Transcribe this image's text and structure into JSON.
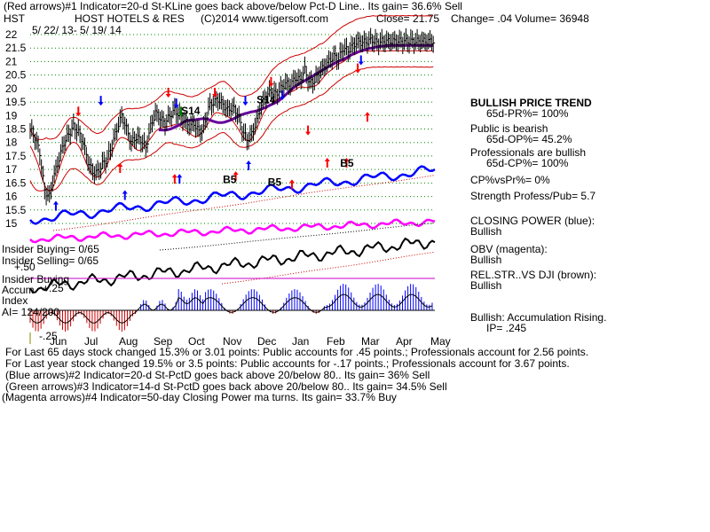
{
  "header": {
    "line1": "(Red arrows)#1 Indicator=20-d St-KLine goes back above/below Pct-D Line.. Its gain= 36.6% Sell",
    "symbol": "HST",
    "company": "HOST HOTELS & RES",
    "copyright": "(C)2014 www.tigersoft.com",
    "close": "Close=  21.75",
    "change": "Change= .04",
    "volume": "Volume= 36948",
    "date_range": "5/ 22/ 13- 5/ 19/ 14"
  },
  "chart_data": {
    "type": "line",
    "y_ticks": [
      "22",
      "21.5",
      "21",
      "20.5",
      "20",
      "19.5",
      "19",
      "18.5",
      "18",
      "17.5",
      "17",
      "16.5",
      "16",
      "15.5",
      "15"
    ],
    "ylim": [
      15,
      22
    ],
    "months": [
      "Jun",
      "Jul",
      "Aug",
      "Sep",
      "Oct",
      "Nov",
      "Dec",
      "Jan",
      "Feb",
      "Mar",
      "Apr",
      "May"
    ],
    "price_series": {
      "name": "",
      "x": [
        0,
        3,
        6,
        9,
        12,
        15,
        18,
        21,
        24,
        27,
        30,
        33,
        36,
        39,
        42,
        45,
        48,
        51,
        54,
        57,
        60,
        63,
        66,
        69,
        72,
        75,
        78,
        81,
        84,
        87,
        90,
        93,
        96,
        99,
        102,
        105,
        108,
        111,
        114,
        117,
        120,
        123,
        126,
        129,
        132,
        135,
        138,
        141,
        144,
        147,
        150,
        153,
        156,
        159,
        162,
        165,
        168,
        171,
        174,
        177,
        180,
        183,
        186,
        189,
        192,
        195,
        198,
        201,
        204,
        207,
        210,
        213,
        216,
        219,
        222,
        225,
        228,
        231,
        234,
        237,
        240,
        243,
        246,
        249,
        252
      ],
      "y": [
        18.5,
        18.2,
        17.6,
        16.2,
        16.0,
        16.8,
        17.4,
        18.0,
        18.3,
        18.6,
        18.4,
        18.0,
        17.3,
        16.9,
        16.9,
        17.2,
        17.4,
        17.9,
        18.5,
        19.0,
        18.5,
        18.0,
        18.2,
        18.1,
        17.8,
        18.6,
        19.1,
        18.9,
        18.7,
        19.0,
        19.2,
        19.0,
        18.8,
        18.6,
        18.7,
        18.4,
        18.5,
        19.3,
        19.5,
        19.6,
        19.4,
        19.2,
        19.3,
        19.1,
        18.5,
        18.1,
        18.3,
        18.8,
        19.4,
        19.7,
        19.9,
        19.8,
        20.0,
        20.2,
        20.1,
        20.4,
        20.3,
        20.7,
        20.2,
        20.3,
        20.6,
        20.8,
        21.0,
        21.2,
        21.1,
        21.5,
        21.4,
        21.6,
        21.75,
        21.7,
        21.75,
        21.8,
        21.7,
        21.75,
        21.75,
        21.75,
        21.75,
        21.75,
        21.75,
        21.75,
        21.75,
        21.75,
        21.75,
        21.75,
        21.75
      ]
    },
    "arrows": [
      {
        "color": "red",
        "dir": "down",
        "x": 30,
        "y": 19.0
      },
      {
        "color": "red",
        "dir": "up",
        "x": 56,
        "y": 17.2
      },
      {
        "color": "red",
        "dir": "down",
        "x": 86,
        "y": 19.7
      },
      {
        "color": "red",
        "dir": "up",
        "x": 90,
        "y": 16.8
      },
      {
        "color": "red",
        "dir": "down",
        "x": 115,
        "y": 19.7
      },
      {
        "color": "red",
        "dir": "up",
        "x": 128,
        "y": 16.9
      },
      {
        "color": "red",
        "dir": "down",
        "x": 150,
        "y": 20.1
      },
      {
        "color": "red",
        "dir": "up",
        "x": 163,
        "y": 16.6
      },
      {
        "color": "red",
        "dir": "down",
        "x": 173,
        "y": 18.3
      },
      {
        "color": "red",
        "dir": "up",
        "x": 185,
        "y": 17.4
      },
      {
        "color": "red",
        "dir": "up",
        "x": 197,
        "y": 17.4
      },
      {
        "color": "red",
        "dir": "down",
        "x": 204,
        "y": 20.6
      },
      {
        "color": "red",
        "dir": "up",
        "x": 210,
        "y": 19.1
      },
      {
        "color": "blue",
        "dir": "down",
        "x": 44,
        "y": 19.4
      },
      {
        "color": "blue",
        "dir": "up",
        "x": 16,
        "y": 15.8
      },
      {
        "color": "blue",
        "dir": "up",
        "x": 59,
        "y": 16.2
      },
      {
        "color": "blue",
        "dir": "down",
        "x": 91,
        "y": 19.3
      },
      {
        "color": "blue",
        "dir": "up",
        "x": 93,
        "y": 16.8
      },
      {
        "color": "blue",
        "dir": "down",
        "x": 134,
        "y": 19.4
      },
      {
        "color": "blue",
        "dir": "up",
        "x": 136,
        "y": 17.3
      },
      {
        "color": "blue",
        "dir": "down",
        "x": 157,
        "y": 19.6
      },
      {
        "color": "blue",
        "dir": "down",
        "x": 206,
        "y": 20.9
      },
      {
        "color": "green",
        "dir": "down",
        "x": 94,
        "y": 19.0
      }
    ],
    "labels": [
      {
        "text": "S14",
        "x": 94,
        "y": 19.05
      },
      {
        "text": "S14",
        "x": 141,
        "y": 19.45
      },
      {
        "text": "B5",
        "x": 120,
        "y": 16.5
      },
      {
        "text": "B5",
        "x": 148,
        "y": 16.4
      },
      {
        "text": "B5",
        "x": 193,
        "y": 17.1
      }
    ]
  },
  "indicators": {
    "insider_buying": "Insider Buying= 0/65",
    "insider_selling": "Insider Selling= 0/65",
    "insider_buying_lbl": "Insider Buying",
    "accum": "Accum",
    "index": "Index",
    "ai": "AI= 124/200",
    "v_plus50": "+.50",
    "v_plus25": "+.25",
    "v_minus25": "-.25"
  },
  "sidebar": {
    "bullish_trend": "BULLISH PRICE TREND",
    "pr": "65d-PR%= 100%",
    "public_bearish": "Public is bearish",
    "op": "65d-OP%= 45.2%",
    "pro_bullish": "Professionals are bullish",
    "cp": "65d-CP%= 100%",
    "cpvspr": "CP%vsPr%=  0%",
    "strength": "Strength Profess/Pub= 5.7",
    "closing_power": "CLOSING POWER (blue):",
    "cp_bull": "Bullish",
    "obv": "OBV (magenta):",
    "obv_bull": "Bullish",
    "relstr": "REL.STR..VS DJI (brown):",
    "rel_bull": "Bullish",
    "accum_rising": "Bullish: Accumulation Rising.",
    "ip": "IP=  .245"
  },
  "footer": {
    "line1": "For Last 65 days stock changed  15.3% or  3.01 points:  Public accounts for  .45 points.;  Professionals account for  2.56 points.",
    "line2": "For Last year stock changed  19.5% or  3.5 points:  Public accounts for -.17 points.;  Professionals account for  3.67 points.",
    "line3": "(Blue arrows)#2 Indicator=20-d St-PctD goes back above 20/below 80.. Its gain= 36% Sell",
    "line4": "(Green arrows)#3 Indicator=14-d St-PctD goes back above 20/below 80.. Its gain= 34.5% Sell",
    "line5": "(Magenta arrows)#4 Indicator=50-day Closing Power ma turns. Its gain= 33.7% Buy"
  },
  "colors": {
    "price": "#000000",
    "band": "#cc0000",
    "ma": "#660099",
    "closing_power": "#0000ff",
    "obv": "#ff00ff",
    "relstr": "#000000",
    "accum_pos": "#0000ff",
    "accum_neg": "#cc0000",
    "grid": "#008800",
    "magenta_line": "#cc00cc"
  }
}
